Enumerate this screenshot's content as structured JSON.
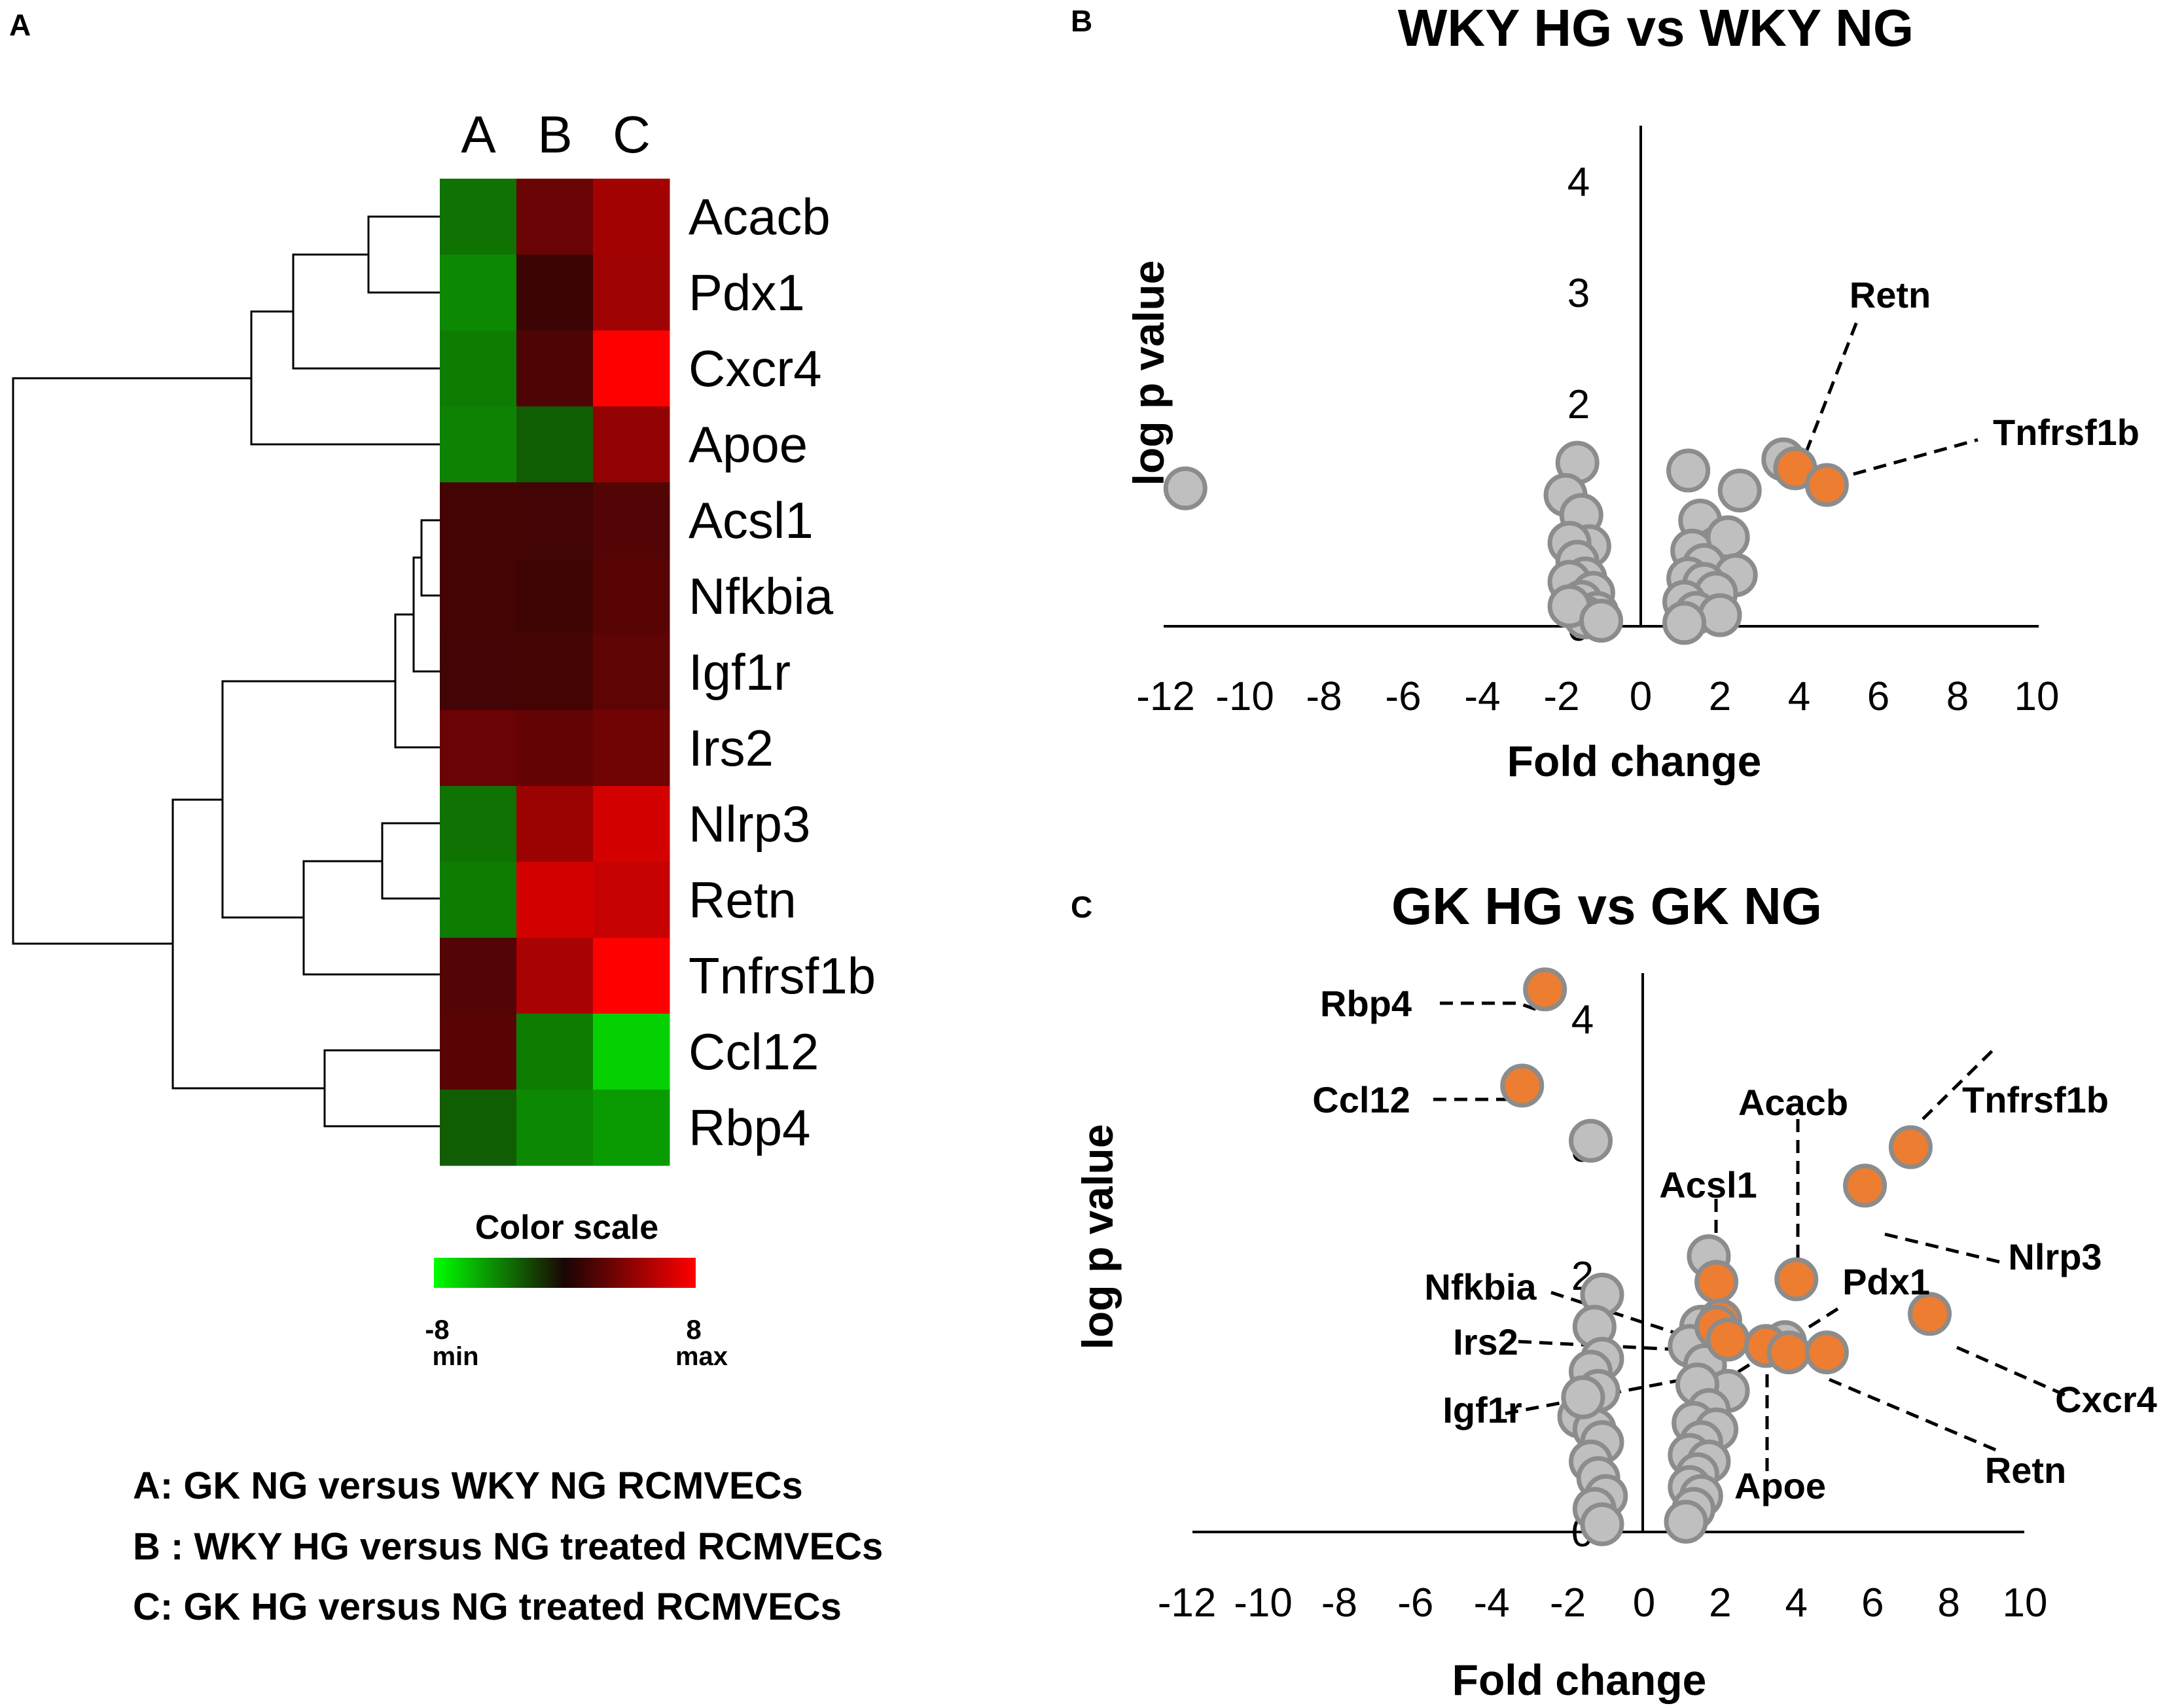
{
  "panel_letters": {
    "a": "A",
    "b": "B",
    "c": "C"
  },
  "colors": {
    "orange": "#ed7d31",
    "gray_fill": "#bfbfbf",
    "gray_stroke": "#8c8c8c",
    "green_min": "#00ff00",
    "red_max": "#ff0000",
    "mid": "#1a0505"
  },
  "chart_data": [
    {
      "id": "heatmap",
      "type": "heatmap",
      "columns": [
        "A",
        "B",
        "C"
      ],
      "rows": [
        "Acacb",
        "Pdx1",
        "Cxcr4",
        "Apoe",
        "Acsl1",
        "Nfkbia",
        "Igf1r",
        "Irs2",
        "Nlrp3",
        "Retn",
        "Tnfrsf1b",
        "Ccl12",
        "Rbp4"
      ],
      "values": [
        [
          -3.5,
          2.8,
          4.8
        ],
        [
          -4.2,
          1.2,
          4.6
        ],
        [
          -3.8,
          1.8,
          8.0
        ],
        [
          -4.0,
          -2.8,
          4.2
        ],
        [
          1.5,
          1.4,
          2.0
        ],
        [
          1.5,
          1.3,
          2.2
        ],
        [
          1.4,
          1.5,
          2.4
        ],
        [
          2.8,
          2.6,
          3.0
        ],
        [
          -3.5,
          4.5,
          6.5
        ],
        [
          -3.8,
          6.5,
          6.0
        ],
        [
          2.0,
          5.0,
          8.0
        ],
        [
          2.2,
          -3.8,
          -6.5
        ],
        [
          -2.8,
          -4.2,
          -4.8
        ]
      ],
      "color_scale": {
        "title": "Color scale",
        "min": -8,
        "max": 8,
        "min_label": "-8",
        "min_text": "min",
        "max_label": "8",
        "max_text": "max"
      },
      "legend": [
        "A: GK NG versus WKY NG RCMVECs",
        "B : WKY HG versus NG treated RCMVECs",
        "C: GK HG versus NG treated RCMVECs"
      ]
    },
    {
      "id": "volcano_wky",
      "type": "scatter",
      "title": "WKY HG vs WKY NG",
      "xlabel": "Fold change",
      "ylabel": "log p value",
      "xlim": [
        -12,
        10
      ],
      "ylim": [
        0,
        4
      ],
      "xticks": [
        -12,
        -10,
        -8,
        -6,
        -4,
        -2,
        0,
        2,
        4,
        6,
        8,
        10
      ],
      "yticks": [
        0,
        1,
        2,
        3,
        4
      ],
      "gray_points": [
        [
          -11.5,
          1.24
        ],
        [
          -1.6,
          1.47
        ],
        [
          -1.9,
          1.18
        ],
        [
          -1.5,
          1.0
        ],
        [
          -1.3,
          0.72
        ],
        [
          -1.8,
          0.75
        ],
        [
          -1.6,
          0.58
        ],
        [
          -1.4,
          0.43
        ],
        [
          -1.8,
          0.4
        ],
        [
          -1.2,
          0.3
        ],
        [
          -1.5,
          0.22
        ],
        [
          -1.1,
          0.12
        ],
        [
          -1.4,
          0.08
        ],
        [
          -1.8,
          0.18
        ],
        [
          -1.0,
          0.05
        ],
        [
          1.2,
          1.4
        ],
        [
          2.5,
          1.22
        ],
        [
          1.5,
          0.95
        ],
        [
          1.9,
          0.7
        ],
        [
          1.3,
          0.68
        ],
        [
          2.2,
          0.8
        ],
        [
          1.6,
          0.55
        ],
        [
          1.2,
          0.43
        ],
        [
          2.4,
          0.46
        ],
        [
          1.6,
          0.38
        ],
        [
          1.9,
          0.3
        ],
        [
          1.1,
          0.22
        ],
        [
          1.4,
          0.12
        ],
        [
          2.0,
          0.1
        ],
        [
          1.1,
          0.03
        ],
        [
          3.6,
          1.5
        ]
      ],
      "highlight_points": [
        {
          "label": "Retn",
          "x": 3.9,
          "y": 1.42
        },
        {
          "label": "Tnfrsf1b",
          "x": 4.7,
          "y": 1.27
        }
      ]
    },
    {
      "id": "volcano_gk",
      "type": "scatter",
      "title": "GK HG vs GK NG",
      "xlabel": "Fold change",
      "ylabel": "log p value",
      "xlim": [
        -12,
        10
      ],
      "ylim": [
        0,
        4
      ],
      "xticks": [
        -12,
        -10,
        -8,
        -6,
        -4,
        -2,
        0,
        2,
        4,
        6,
        8,
        10
      ],
      "yticks": [
        0,
        1,
        2,
        3,
        4
      ],
      "gray_points": [
        [
          -1.4,
          3.05
        ],
        [
          -1.1,
          1.85
        ],
        [
          -1.3,
          1.6
        ],
        [
          -1.1,
          1.35
        ],
        [
          -1.4,
          1.25
        ],
        [
          -1.2,
          1.1
        ],
        [
          -1.7,
          0.9
        ],
        [
          -1.3,
          0.8
        ],
        [
          -1.1,
          0.7
        ],
        [
          -1.4,
          0.55
        ],
        [
          -1.2,
          0.42
        ],
        [
          -1.0,
          0.28
        ],
        [
          -1.3,
          0.18
        ],
        [
          -1.1,
          0.06
        ],
        [
          -1.6,
          1.05
        ],
        [
          1.7,
          2.15
        ],
        [
          1.5,
          1.6
        ],
        [
          1.2,
          1.45
        ],
        [
          1.6,
          1.3
        ],
        [
          2.2,
          1.1
        ],
        [
          1.4,
          1.15
        ],
        [
          1.7,
          0.95
        ],
        [
          1.3,
          0.85
        ],
        [
          1.9,
          0.8
        ],
        [
          1.5,
          0.7
        ],
        [
          1.2,
          0.6
        ],
        [
          1.7,
          0.55
        ],
        [
          1.4,
          0.45
        ],
        [
          1.2,
          0.35
        ],
        [
          1.5,
          0.28
        ],
        [
          1.3,
          0.18
        ],
        [
          1.1,
          0.08
        ],
        [
          3.7,
          1.48
        ]
      ],
      "highlight_points": [
        {
          "label": "Rbp4",
          "x": -2.6,
          "y": 4.23
        },
        {
          "label": "Ccl12",
          "x": -3.2,
          "y": 3.48
        },
        {
          "label": "Tnfrsf1b",
          "x": 7.0,
          "y": 3.0
        },
        {
          "label": "Nlrp3",
          "x": 5.8,
          "y": 2.7
        },
        {
          "label": "Acsl1",
          "x": 1.9,
          "y": 1.95
        },
        {
          "label": "Acacb",
          "x": 4.0,
          "y": 1.97
        },
        {
          "label": "Cxcr4",
          "x": 7.5,
          "y": 1.7
        },
        {
          "label": "Nfkbia",
          "x": 2.0,
          "y": 1.65
        },
        {
          "label": "Irs2",
          "x": 1.9,
          "y": 1.6
        },
        {
          "label": "Igf1r",
          "x": 2.2,
          "y": 1.5
        },
        {
          "label": "Pdx1",
          "x": 3.2,
          "y": 1.45
        },
        {
          "label": "Apoe",
          "x": 3.8,
          "y": 1.4
        },
        {
          "label": "Retn",
          "x": 4.8,
          "y": 1.4
        }
      ]
    }
  ]
}
